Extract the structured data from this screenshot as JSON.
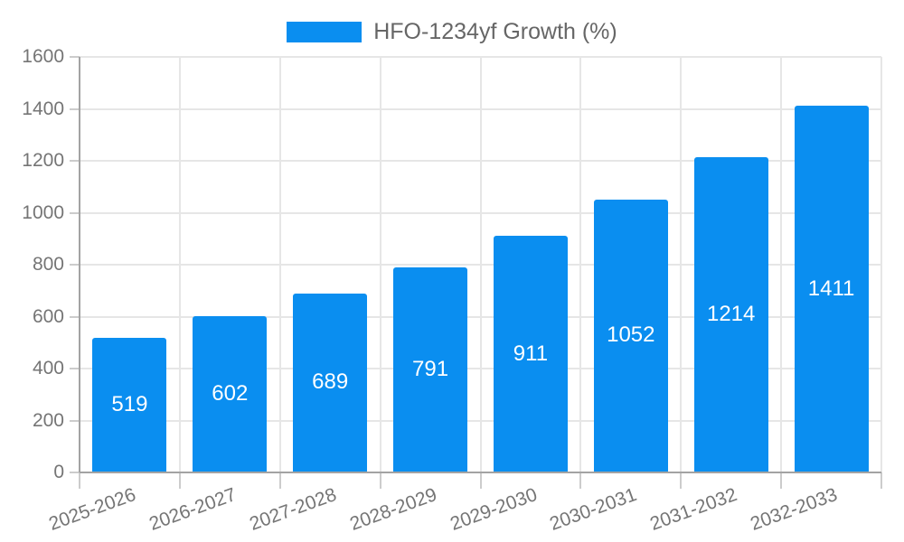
{
  "chart_data": {
    "type": "bar",
    "legend": "HFO-1234yf Growth (%)",
    "legend_position": "top-center",
    "categories": [
      "2025-2026",
      "2026-2027",
      "2027-2028",
      "2028-2029",
      "2029-2030",
      "2030-2031",
      "2031-2032",
      "2032-2033"
    ],
    "values": [
      519,
      602,
      689,
      791,
      911,
      1052,
      1214,
      1411
    ],
    "bar_labels": [
      "519",
      "602",
      "689",
      "791",
      "911",
      "1052",
      "1214",
      "1411"
    ],
    "bar_labels_position": "inside-center",
    "xlabel": "",
    "ylabel": "",
    "ylim": [
      0,
      1600
    ],
    "ytick_step": 200,
    "ytick_labels": [
      "0",
      "200",
      "400",
      "600",
      "800",
      "1000",
      "1200",
      "1400",
      "1600"
    ],
    "xtick_label_rotation_deg": -20,
    "grid": true
  },
  "colors": {
    "bar": "#0a8ef0",
    "bar_label_text": "#ffffff",
    "gridline": "#e6e6e6",
    "axis_line": "#a3a3a3",
    "tick_mark": "#cccccc",
    "tick_text": "#757575",
    "legend_text": "#666666",
    "background": "#ffffff"
  }
}
